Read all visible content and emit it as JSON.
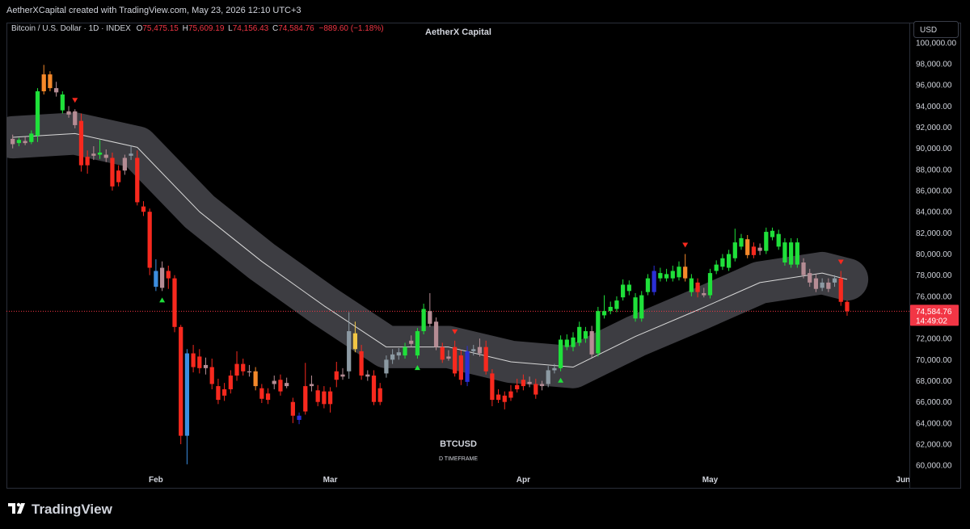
{
  "attribution": "AetherXCapital created with TradingView.com, May 23, 2026 12:10 UTC+3",
  "branding": "TradingView",
  "chart_data": {
    "type": "candlestick",
    "title": "AetherX Capital",
    "legend": {
      "symbol": "Bitcoin / U.S. Dollar · 1D · INDEX",
      "o_label": "O",
      "open": "75,475.15",
      "h_label": "H",
      "high": "75,609.19",
      "l_label": "L",
      "low": "74,156.43",
      "c_label": "C",
      "close": "74,584.76",
      "change": "−889.60 (−1.18%)"
    },
    "currency": "USD",
    "watermark": "BTCUSD",
    "watermark_sub": "D TIMEFRAME",
    "grid": false,
    "xlim": [
      -1,
      144
    ],
    "xticks": [
      {
        "value": 23,
        "label": "Feb"
      },
      {
        "value": 51,
        "label": "Mar"
      },
      {
        "value": 82,
        "label": "Apr"
      },
      {
        "value": 112,
        "label": "May"
      },
      {
        "value": 143,
        "label": "Jun"
      }
    ],
    "ylim": [
      57800,
      101900
    ],
    "yticks": [
      {
        "value": 60000,
        "label": "60,000.00"
      },
      {
        "value": 62000,
        "label": "62,000.00"
      },
      {
        "value": 64000,
        "label": "64,000.00"
      },
      {
        "value": 66000,
        "label": "66,000.00"
      },
      {
        "value": 68000,
        "label": "68,000.00"
      },
      {
        "value": 70000,
        "label": "70,000.00"
      },
      {
        "value": 72000,
        "label": "72,000.00"
      },
      {
        "value": 74000,
        "label": "74,000.00"
      },
      {
        "value": 76000,
        "label": "76,000.00"
      },
      {
        "value": 78000,
        "label": "78,000.00"
      },
      {
        "value": 80000,
        "label": "80,000.00"
      },
      {
        "value": 82000,
        "label": "82,000.00"
      },
      {
        "value": 84000,
        "label": "84,000.00"
      },
      {
        "value": 86000,
        "label": "86,000.00"
      },
      {
        "value": 88000,
        "label": "88,000.00"
      },
      {
        "value": 90000,
        "label": "90,000.00"
      },
      {
        "value": 92000,
        "label": "92,000.00"
      },
      {
        "value": 94000,
        "label": "94,000.00"
      },
      {
        "value": 96000,
        "label": "96,000.00"
      },
      {
        "value": 98000,
        "label": "98,000.00"
      },
      {
        "value": 100000,
        "label": "100,000.00"
      }
    ],
    "last_price": {
      "value": 74584.76,
      "label": "74,584.76",
      "countdown": "14:49:02",
      "color": "#f23645"
    },
    "ohlc": [
      [
        90900,
        91300,
        90000,
        90400
      ],
      [
        90500,
        91000,
        90200,
        90800
      ],
      [
        90700,
        91100,
        90300,
        90500
      ],
      [
        90600,
        91700,
        90400,
        91400
      ],
      [
        91200,
        95700,
        90600,
        95400
      ],
      [
        95400,
        97900,
        95100,
        97000
      ],
      [
        97000,
        97300,
        95400,
        95700
      ],
      [
        95700,
        96300,
        94900,
        95300
      ],
      [
        93600,
        95400,
        93300,
        95100
      ],
      [
        93500,
        94000,
        92900,
        93200
      ],
      [
        93500,
        93700,
        91900,
        92200
      ],
      [
        92600,
        93300,
        87800,
        88400
      ],
      [
        89200,
        89800,
        87600,
        88400
      ],
      [
        89500,
        90200,
        88900,
        89300
      ],
      [
        89400,
        90800,
        89000,
        89600
      ],
      [
        89400,
        89900,
        88700,
        89100
      ],
      [
        89100,
        89600,
        86000,
        86400
      ],
      [
        87900,
        88400,
        86400,
        86800
      ],
      [
        87900,
        89400,
        87500,
        89100
      ],
      [
        89300,
        90300,
        88900,
        89500
      ],
      [
        89100,
        89800,
        84600,
        84900
      ],
      [
        84500,
        85000,
        83600,
        84000
      ],
      [
        84000,
        84300,
        78000,
        78700
      ],
      [
        76900,
        79500,
        76500,
        78400
      ],
      [
        78700,
        79300,
        76500,
        76800
      ],
      [
        78400,
        78900,
        76700,
        77700
      ],
      [
        77700,
        78000,
        72600,
        73100
      ],
      [
        73100,
        73300,
        62000,
        62800
      ],
      [
        62800,
        71000,
        60100,
        70600
      ],
      [
        70600,
        71400,
        68800,
        69300
      ],
      [
        70300,
        71000,
        68700,
        69200
      ],
      [
        69200,
        70200,
        68600,
        69500
      ],
      [
        69300,
        70100,
        67200,
        67700
      ],
      [
        67500,
        68200,
        65800,
        66200
      ],
      [
        67200,
        67800,
        66100,
        66600
      ],
      [
        68500,
        69000,
        66800,
        67200
      ],
      [
        69600,
        70800,
        68000,
        68500
      ],
      [
        69600,
        70100,
        68500,
        68900
      ],
      [
        68900,
        69500,
        68400,
        68800
      ],
      [
        68900,
        69300,
        67100,
        67500
      ],
      [
        67300,
        67700,
        65900,
        66300
      ],
      [
        66800,
        67300,
        65800,
        66200
      ],
      [
        67700,
        68500,
        67200,
        68000
      ],
      [
        68100,
        68600,
        66600,
        67000
      ],
      [
        67800,
        68300,
        67300,
        67500
      ],
      [
        66000,
        66400,
        64000,
        64700
      ],
      [
        64300,
        65000,
        63900,
        64700
      ],
      [
        67500,
        69700,
        64800,
        65100
      ],
      [
        67500,
        68500,
        67000,
        67700
      ],
      [
        67100,
        67600,
        65600,
        66000
      ],
      [
        67000,
        67500,
        65400,
        65800
      ],
      [
        67000,
        67400,
        65000,
        65800
      ],
      [
        68900,
        69800,
        67400,
        68100
      ],
      [
        68600,
        69200,
        68100,
        68400
      ],
      [
        68900,
        74500,
        68200,
        72700
      ],
      [
        72500,
        73600,
        70700,
        71000
      ],
      [
        70800,
        71400,
        68100,
        68500
      ],
      [
        68600,
        69000,
        68000,
        68400
      ],
      [
        68500,
        69000,
        65700,
        66000
      ],
      [
        67300,
        67800,
        65700,
        66000
      ],
      [
        68700,
        70400,
        68300,
        70000
      ],
      [
        70000,
        71000,
        69600,
        70500
      ],
      [
        70400,
        71100,
        70000,
        70700
      ],
      [
        70400,
        71600,
        70100,
        71200
      ],
      [
        71500,
        72300,
        71200,
        71800
      ],
      [
        70400,
        73000,
        70100,
        72700
      ],
      [
        72700,
        75300,
        72400,
        74800
      ],
      [
        74600,
        76300,
        73100,
        73400
      ],
      [
        73600,
        74000,
        70900,
        71200
      ],
      [
        71200,
        71600,
        69700,
        70000
      ],
      [
        70300,
        70900,
        69900,
        70100
      ],
      [
        71200,
        71800,
        68400,
        68700
      ],
      [
        70400,
        70900,
        67600,
        68100
      ],
      [
        67900,
        71300,
        67500,
        70800
      ],
      [
        70800,
        71400,
        70400,
        71000
      ],
      [
        71200,
        72000,
        70300,
        70600
      ],
      [
        71200,
        71800,
        68600,
        68900
      ],
      [
        68700,
        69100,
        65600,
        66200
      ],
      [
        66700,
        67200,
        65900,
        66200
      ],
      [
        66600,
        67000,
        65300,
        66000
      ],
      [
        67000,
        67600,
        66100,
        66400
      ],
      [
        67600,
        68200,
        66900,
        67200
      ],
      [
        68100,
        68600,
        67100,
        67500
      ],
      [
        67900,
        68400,
        67400,
        67700
      ],
      [
        67700,
        68200,
        66300,
        66700
      ],
      [
        67500,
        68000,
        67100,
        67700
      ],
      [
        67700,
        69400,
        67400,
        69000
      ],
      [
        69000,
        69600,
        68700,
        69200
      ],
      [
        69200,
        72300,
        68900,
        71900
      ],
      [
        71200,
        72400,
        70900,
        71900
      ],
      [
        71200,
        72600,
        70800,
        72100
      ],
      [
        71600,
        73600,
        71300,
        73100
      ],
      [
        72000,
        73100,
        71600,
        72700
      ],
      [
        72700,
        73200,
        70200,
        70500
      ],
      [
        70600,
        75000,
        70300,
        74600
      ],
      [
        74200,
        76100,
        73900,
        74600
      ],
      [
        74600,
        75500,
        74300,
        75000
      ],
      [
        74800,
        76000,
        74500,
        75600
      ],
      [
        75900,
        77600,
        75600,
        77100
      ],
      [
        76500,
        77500,
        76100,
        77100
      ],
      [
        73900,
        76300,
        73600,
        75900
      ],
      [
        73900,
        76500,
        73600,
        76100
      ],
      [
        76400,
        78100,
        76100,
        77700
      ],
      [
        76400,
        78900,
        76100,
        78400
      ],
      [
        77700,
        78700,
        77400,
        78200
      ],
      [
        77700,
        78600,
        77400,
        78100
      ],
      [
        77700,
        78900,
        77400,
        78400
      ],
      [
        77800,
        79300,
        77500,
        78800
      ],
      [
        78800,
        80000,
        77400,
        77700
      ],
      [
        76400,
        78100,
        76000,
        77700
      ],
      [
        77300,
        77700,
        75900,
        76400
      ],
      [
        76300,
        76800,
        75900,
        76100
      ],
      [
        76100,
        78600,
        75800,
        78200
      ],
      [
        78400,
        79400,
        78100,
        79000
      ],
      [
        78800,
        80000,
        78500,
        79600
      ],
      [
        78700,
        80400,
        78400,
        80000
      ],
      [
        79600,
        82400,
        79300,
        81100
      ],
      [
        80700,
        81900,
        80400,
        81500
      ],
      [
        81400,
        81800,
        79600,
        79900
      ],
      [
        80700,
        81100,
        79600,
        79900
      ],
      [
        80300,
        81000,
        79900,
        80600
      ],
      [
        80300,
        82500,
        80000,
        82100
      ],
      [
        81600,
        82500,
        81300,
        82200
      ],
      [
        80700,
        82300,
        80400,
        81900
      ],
      [
        79200,
        81500,
        78900,
        81100
      ],
      [
        79000,
        81500,
        78700,
        81100
      ],
      [
        79000,
        81500,
        78700,
        81100
      ],
      [
        79200,
        79600,
        77700,
        78000
      ],
      [
        78200,
        78600,
        76900,
        77300
      ],
      [
        77700,
        78100,
        76400,
        76700
      ],
      [
        77300,
        77700,
        76500,
        76800
      ],
      [
        77300,
        77700,
        76400,
        76700
      ],
      [
        77300,
        78000,
        76900,
        77700
      ],
      [
        77700,
        78400,
        75100,
        75474
      ],
      [
        75475.15,
        75609.19,
        74156.43,
        74584.76
      ]
    ],
    "colors": [
      "#b58c94",
      "#1fe03a",
      "#b58c94",
      "#1fe03a",
      "#1fe03a",
      "#f5892a",
      "#f5892a",
      "#b58c94",
      "#1fe03a",
      "#b58c94",
      "#b58c94",
      "#f7291e",
      "#f7291e",
      "#b58c94",
      "#1fe03a",
      "#b58c94",
      "#f7291e",
      "#f7291e",
      "#b58c94",
      "#8c9aa3",
      "#f7291e",
      "#f7291e",
      "#f7291e",
      "#3c8ee0",
      "#b58c94",
      "#f7291e",
      "#f7291e",
      "#f7291e",
      "#3c8ee0",
      "#f7291e",
      "#f7291e",
      "#b58c94",
      "#f7291e",
      "#f7291e",
      "#f7291e",
      "#f7291e",
      "#f7291e",
      "#f7291e",
      "#b58c94",
      "#f5892a",
      "#f7291e",
      "#f7291e",
      "#b58c94",
      "#f7291e",
      "#b58c94",
      "#f7291e",
      "#2b2fd6",
      "#f7291e",
      "#b58c94",
      "#f7291e",
      "#f7291e",
      "#f7291e",
      "#f7291e",
      "#b58c94",
      "#8c9aa3",
      "#f2c744",
      "#f7291e",
      "#b58c94",
      "#f7291e",
      "#f7291e",
      "#8c9aa3",
      "#8c9aa3",
      "#8c9aa3",
      "#1fe03a",
      "#b58c94",
      "#1fe03a",
      "#1fe03a",
      "#b58c94",
      "#b58c94",
      "#f7291e",
      "#b58c94",
      "#f7291e",
      "#f7291e",
      "#2b2fd6",
      "#8c9aa3",
      "#b58c94",
      "#f7291e",
      "#f7291e",
      "#f7291e",
      "#f7291e",
      "#f7291e",
      "#f7291e",
      "#f7291e",
      "#b58c94",
      "#f7291e",
      "#b58c94",
      "#8c9aa3",
      "#8c9aa3",
      "#1fe03a",
      "#1fe03a",
      "#1fe03a",
      "#1fe03a",
      "#1fe03a",
      "#b58c94",
      "#1fe03a",
      "#1fe03a",
      "#1fe03a",
      "#1fe03a",
      "#1fe03a",
      "#1fe03a",
      "#1fe03a",
      "#1fe03a",
      "#1fe03a",
      "#2b2fd6",
      "#1fe03a",
      "#1fe03a",
      "#1fe03a",
      "#1fe03a",
      "#f5892a",
      "#1fe03a",
      "#f7291e",
      "#b58c94",
      "#1fe03a",
      "#1fe03a",
      "#1fe03a",
      "#1fe03a",
      "#1fe03a",
      "#1fe03a",
      "#f5892a",
      "#f7291e",
      "#b58c94",
      "#1fe03a",
      "#1fe03a",
      "#1fe03a",
      "#1fe03a",
      "#1fe03a",
      "#1fe03a",
      "#b58c94",
      "#b58c94",
      "#b58c94",
      "#8c9aa3",
      "#b58c94",
      "#8c9aa3",
      "#f7291e",
      "#f7291e"
    ],
    "ma": {
      "x": [
        0,
        10,
        20,
        30,
        40,
        50,
        60,
        70,
        80,
        90,
        100,
        110,
        120,
        130,
        134
      ],
      "values": [
        91050,
        91400,
        90100,
        84000,
        79300,
        75100,
        71200,
        71200,
        69800,
        69300,
        72200,
        74700,
        77300,
        78200,
        77600
      ],
      "band": 2000,
      "color": "#d8d8d8",
      "band_color": "#3d3d42"
    },
    "buy_signals": [
      24,
      65,
      88
    ],
    "sell_signals": [
      10,
      71,
      108,
      133
    ],
    "buy_color": "#1fe03a",
    "sell_color": "#f7291e"
  }
}
